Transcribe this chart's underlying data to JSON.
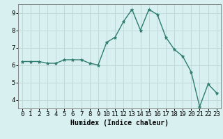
{
  "x": [
    0,
    1,
    2,
    3,
    4,
    5,
    6,
    7,
    8,
    9,
    10,
    11,
    12,
    13,
    14,
    15,
    16,
    17,
    18,
    19,
    20,
    21,
    22,
    23
  ],
  "y": [
    6.2,
    6.2,
    6.2,
    6.1,
    6.1,
    6.3,
    6.3,
    6.3,
    6.1,
    6.0,
    7.3,
    7.6,
    8.5,
    9.2,
    8.0,
    9.2,
    8.9,
    7.6,
    6.9,
    6.5,
    5.6,
    3.6,
    4.9,
    4.4
  ],
  "xlabel": "Humidex (Indice chaleur)",
  "ylim": [
    3.5,
    9.5
  ],
  "xlim": [
    -0.5,
    23.5
  ],
  "yticks": [
    4,
    5,
    6,
    7,
    8,
    9
  ],
  "xticks": [
    0,
    1,
    2,
    3,
    4,
    5,
    6,
    7,
    8,
    9,
    10,
    11,
    12,
    13,
    14,
    15,
    16,
    17,
    18,
    19,
    20,
    21,
    22,
    23
  ],
  "line_color": "#2e7d6e",
  "marker_color": "#2e7d6e",
  "bg_color": "#d8f0f0",
  "grid_color": "#c0d8d8",
  "axis_color": "#888888",
  "xlabel_fontsize": 7,
  "tick_fontsize": 6.5
}
